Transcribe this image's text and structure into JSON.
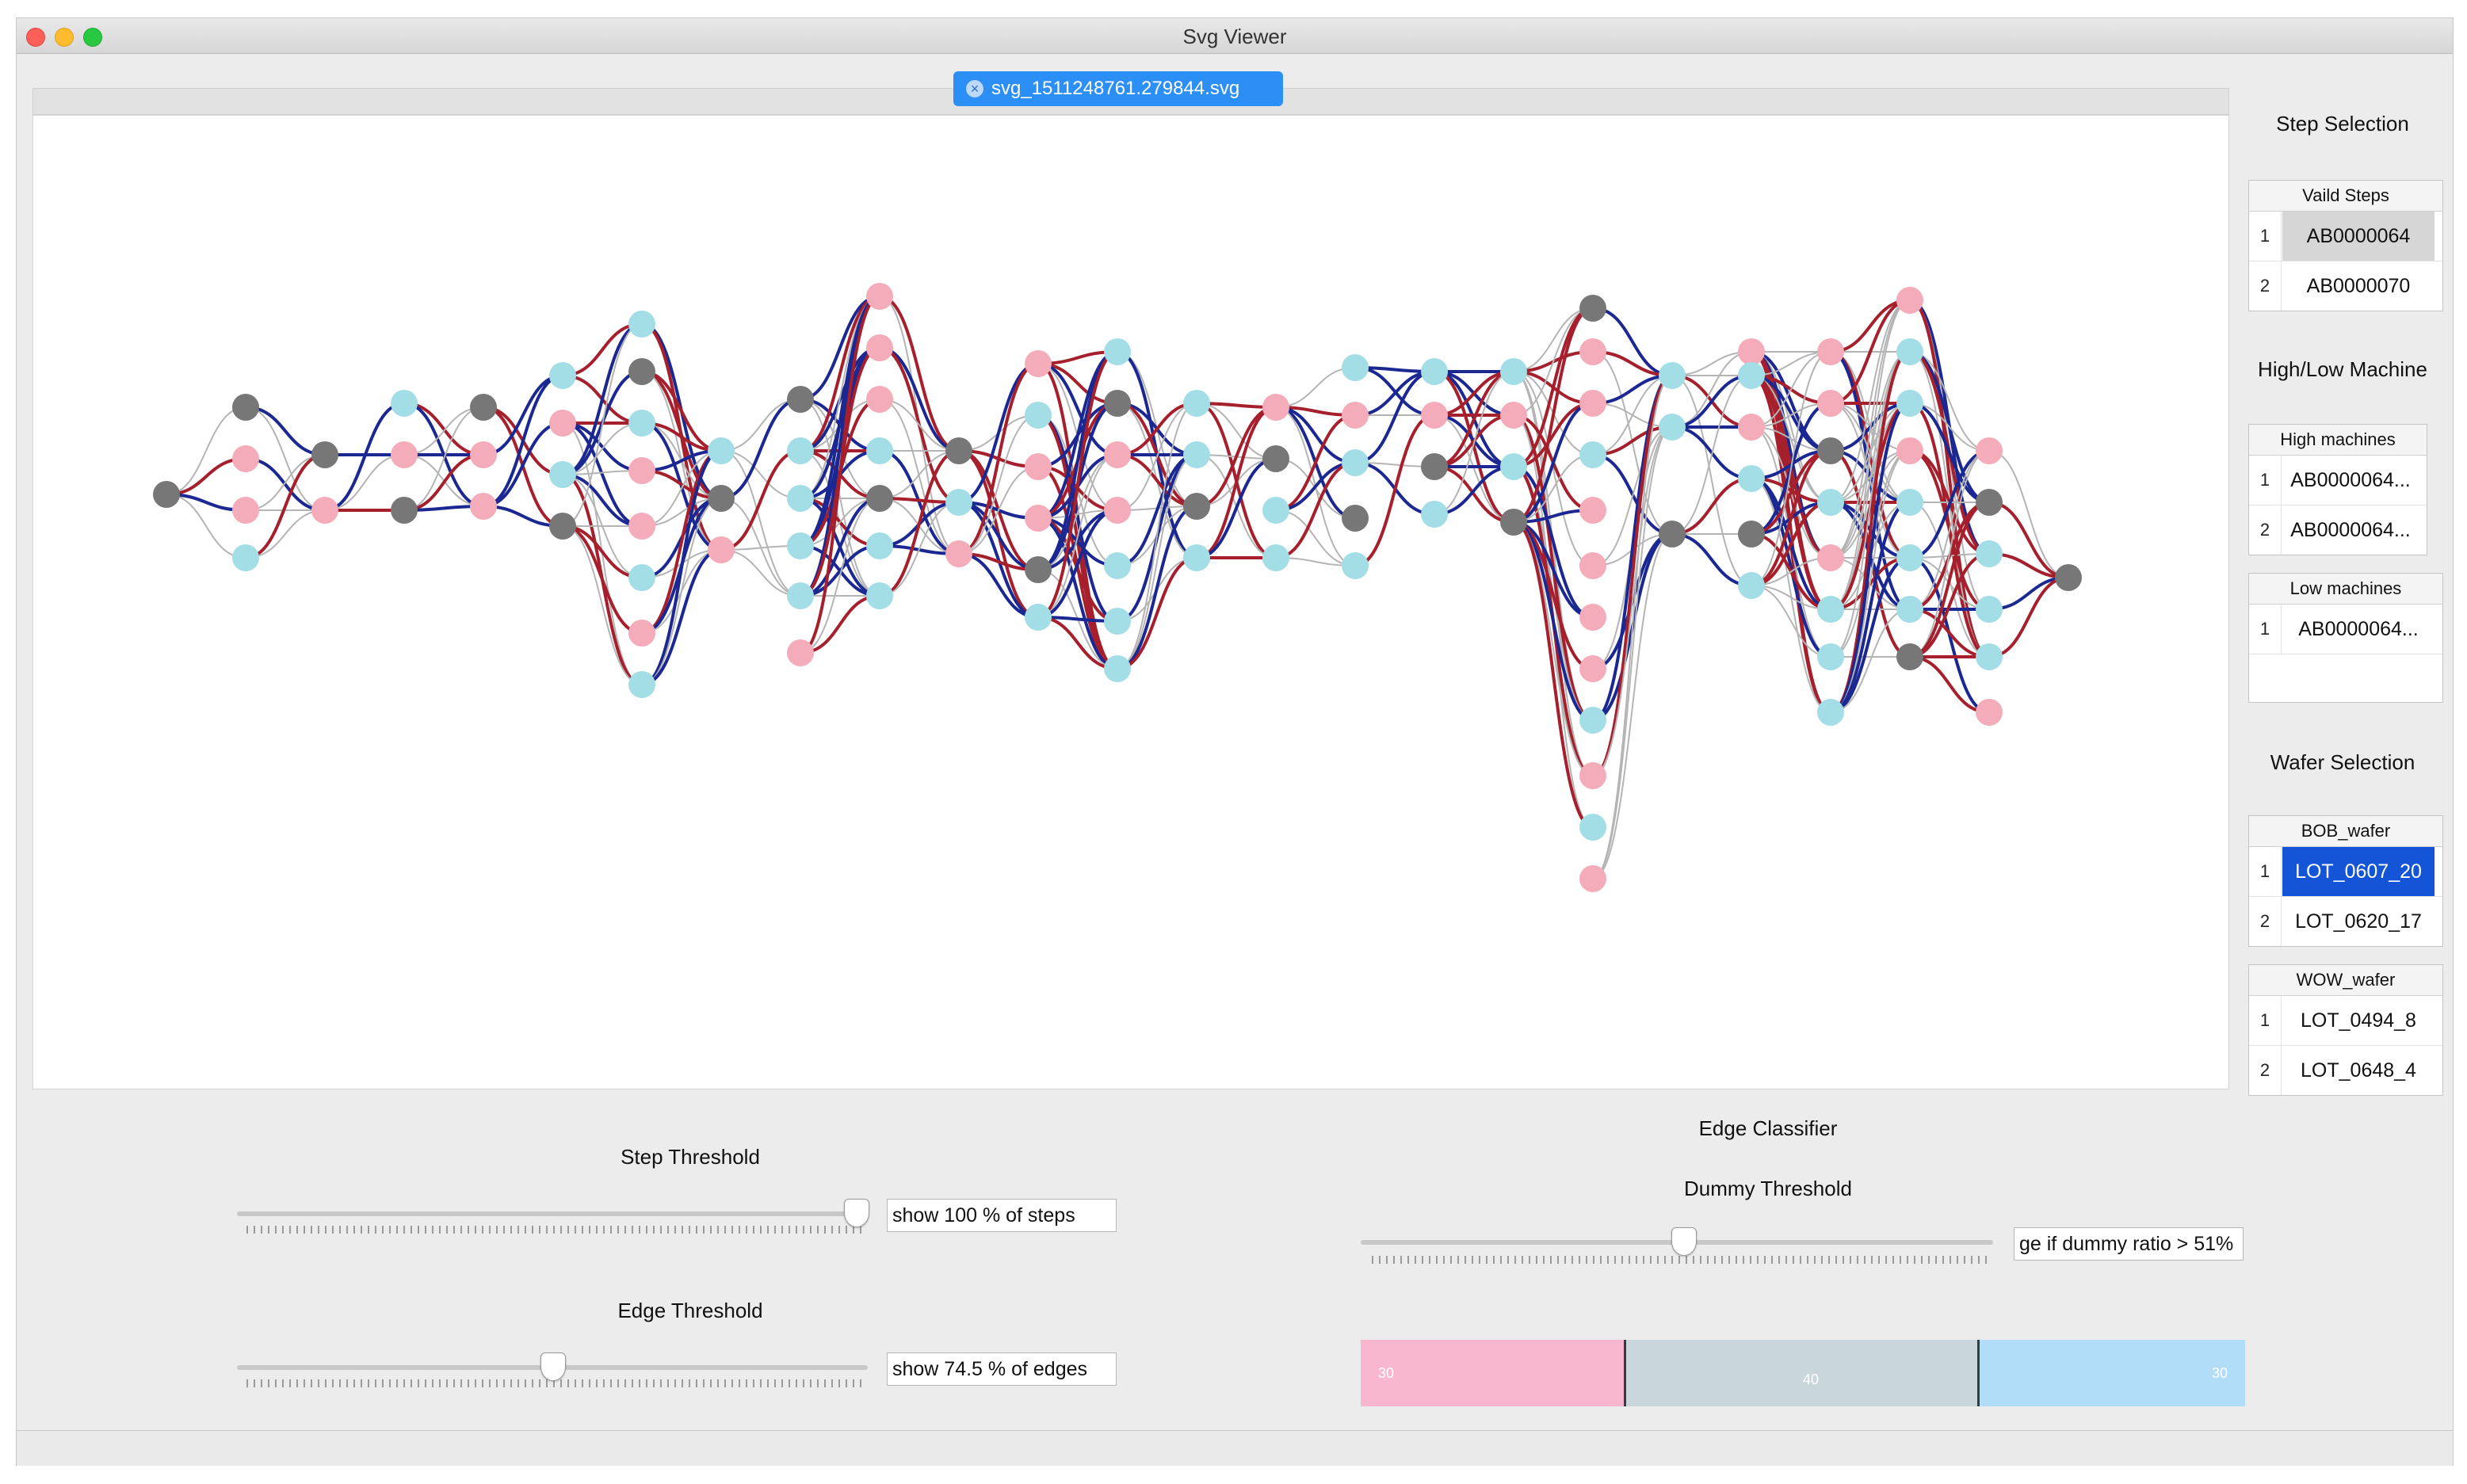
{
  "window": {
    "title": "Svg Viewer"
  },
  "tab": {
    "label": "svg_1511248761.279844.svg",
    "close_glyph": "×"
  },
  "sidebar": {
    "step_selection": {
      "title": "Step Selection",
      "header": "Vaild Steps",
      "rows": [
        {
          "n": "1",
          "value": "AB0000064"
        },
        {
          "n": "2",
          "value": "AB0000070"
        }
      ]
    },
    "machine": {
      "title": "High/Low Machine",
      "high_header": "High machines",
      "high_rows": [
        {
          "n": "1",
          "value": "AB0000064..."
        },
        {
          "n": "2",
          "value": "AB0000064..."
        }
      ],
      "low_header": "Low machines",
      "low_rows": [
        {
          "n": "1",
          "value": "AB0000064..."
        }
      ]
    },
    "wafer": {
      "title": "Wafer Selection",
      "bob_header": "BOB_wafer",
      "bob_rows": [
        {
          "n": "1",
          "value": "LOT_0607_20"
        },
        {
          "n": "2",
          "value": "LOT_0620_17"
        }
      ],
      "wow_header": "WOW_wafer",
      "wow_rows": [
        {
          "n": "1",
          "value": "LOT_0494_8"
        },
        {
          "n": "2",
          "value": "LOT_0648_4"
        }
      ]
    }
  },
  "controls": {
    "step_threshold": {
      "label": "Step Threshold",
      "field": "show 100 % of steps",
      "level": 1.0
    },
    "edge_threshold": {
      "label": "Edge Threshold",
      "field": "show 74.5 % of edges",
      "level": 0.5
    },
    "edge_classifier": {
      "label": "Edge Classifier"
    },
    "dummy_threshold": {
      "label": "Dummy Threshold",
      "field": "ge if dummy ratio > 51%",
      "level": 0.51
    },
    "classifier_bar": [
      {
        "label": "30",
        "value": 30,
        "color": "#f9b6cf"
      },
      {
        "label": "40",
        "value": 40,
        "color": "#c9d6dc"
      },
      {
        "label": "30",
        "value": 30,
        "color": "#b2ddf8"
      }
    ]
  },
  "graph": {
    "colors": {
      "pink": "#f4acba",
      "cyan": "#a3dde6",
      "grey": "#777777",
      "red_edge": "#a51f2c",
      "blue_edge": "#1c2891",
      "grey_edge": "#b4b4b4"
    }
  }
}
